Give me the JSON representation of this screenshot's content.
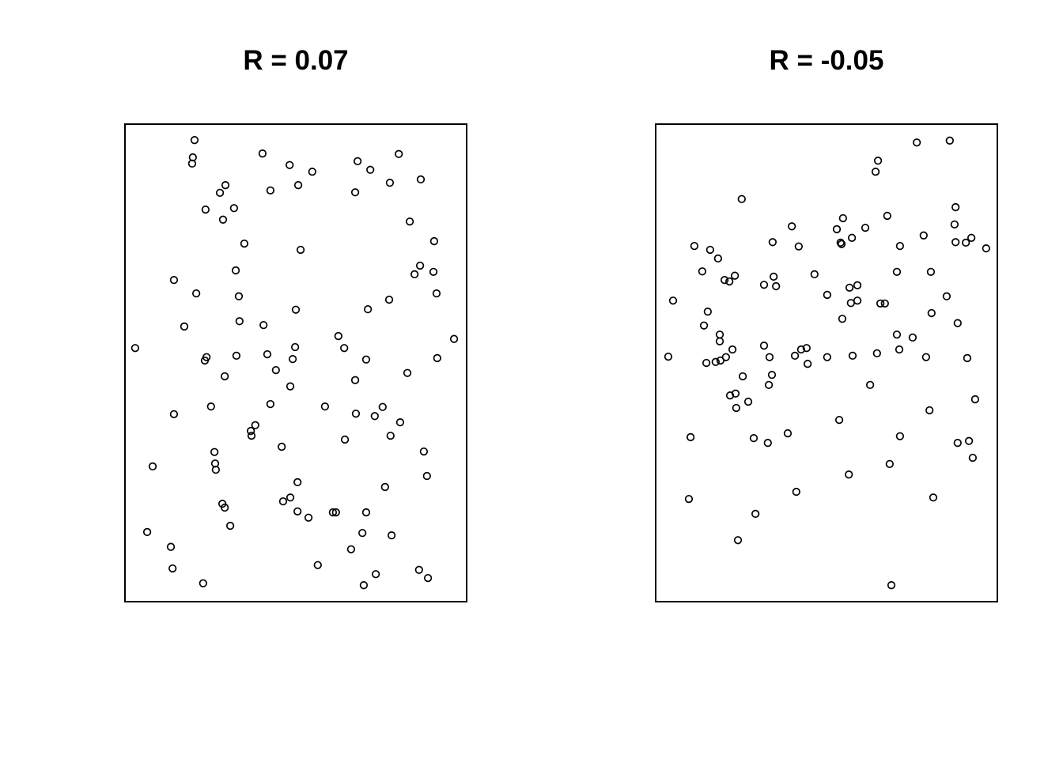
{
  "figure": {
    "background": "#ffffff",
    "box_color": "#000000",
    "point_color": "#000000"
  },
  "panels": [
    {
      "title": "R = 0.07"
    },
    {
      "title": "R = -0.05"
    }
  ],
  "chart_data": [
    {
      "type": "scatter",
      "title": "R = 0.07",
      "correlation_label": "R = 0.07",
      "correlation": 0.07,
      "marker": "open-circle",
      "axes_hidden": true,
      "grid": false,
      "legend": false,
      "xlim": [
        0,
        1
      ],
      "ylim": [
        0,
        1
      ],
      "x": [
        0.205,
        0.2,
        0.198,
        0.403,
        0.482,
        0.295,
        0.279,
        0.426,
        0.507,
        0.237,
        0.32,
        0.288,
        0.35,
        0.325,
        0.145,
        0.21,
        0.334,
        0.5,
        0.336,
        0.406,
        0.175,
        0.032,
        0.24,
        0.235,
        0.327,
        0.417,
        0.498,
        0.491,
        0.8,
        0.68,
        0.717,
        0.548,
        0.774,
        0.864,
        0.673,
        0.832,
        0.903,
        0.514,
        0.862,
        0.846,
        0.901,
        0.91,
        0.772,
        0.71,
        0.624,
        0.641,
        0.961,
        0.705,
        0.912,
        0.442,
        0.293,
        0.484,
        0.426,
        0.253,
        0.145,
        0.382,
        0.369,
        0.371,
        0.459,
        0.263,
        0.265,
        0.267,
        0.083,
        0.463,
        0.484,
        0.286,
        0.293,
        0.309,
        0.067,
        0.136,
        0.141,
        0.23,
        0.825,
        0.673,
        0.585,
        0.753,
        0.675,
        0.73,
        0.804,
        0.776,
        0.643,
        0.873,
        0.882,
        0.76,
        0.505,
        0.537,
        0.505,
        0.608,
        0.617,
        0.705,
        0.694,
        0.779,
        0.661,
        0.564,
        0.733,
        0.698,
        0.859,
        0.885
      ],
      "y": [
        0.965,
        0.929,
        0.916,
        0.937,
        0.913,
        0.871,
        0.855,
        0.86,
        0.871,
        0.82,
        0.823,
        0.799,
        0.749,
        0.693,
        0.673,
        0.645,
        0.639,
        0.611,
        0.587,
        0.579,
        0.576,
        0.531,
        0.512,
        0.505,
        0.515,
        0.518,
        0.533,
        0.508,
        0.936,
        0.921,
        0.903,
        0.899,
        0.876,
        0.883,
        0.856,
        0.795,
        0.754,
        0.736,
        0.703,
        0.685,
        0.69,
        0.645,
        0.632,
        0.612,
        0.556,
        0.531,
        0.55,
        0.507,
        0.51,
        0.485,
        0.472,
        0.451,
        0.414,
        0.409,
        0.393,
        0.37,
        0.358,
        0.348,
        0.325,
        0.314,
        0.29,
        0.277,
        0.284,
        0.211,
        0.219,
        0.206,
        0.198,
        0.16,
        0.147,
        0.116,
        0.071,
        0.04,
        0.479,
        0.464,
        0.409,
        0.408,
        0.394,
        0.389,
        0.376,
        0.348,
        0.34,
        0.315,
        0.264,
        0.241,
        0.251,
        0.177,
        0.19,
        0.188,
        0.188,
        0.188,
        0.145,
        0.14,
        0.111,
        0.078,
        0.059,
        0.036,
        0.068,
        0.051
      ]
    },
    {
      "type": "scatter",
      "title": "R = -0.05",
      "correlation_label": "R = -0.05",
      "correlation": -0.05,
      "marker": "open-circle",
      "axes_hidden": true,
      "grid": false,
      "legend": false,
      "xlim": [
        0,
        1
      ],
      "ylim": [
        0,
        1
      ],
      "x": [
        0.253,
        0.399,
        0.115,
        0.161,
        0.184,
        0.343,
        0.419,
        0.138,
        0.203,
        0.217,
        0.233,
        0.346,
        0.318,
        0.353,
        0.465,
        0.502,
        0.053,
        0.154,
        0.143,
        0.189,
        0.189,
        0.039,
        0.226,
        0.207,
        0.177,
        0.15,
        0.191,
        0.318,
        0.334,
        0.408,
        0.426,
        0.442,
        0.445,
        0.502,
        0.763,
        0.859,
        0.65,
        0.643,
        0.876,
        0.548,
        0.677,
        0.873,
        0.53,
        0.613,
        0.574,
        0.541,
        0.544,
        0.783,
        0.876,
        0.906,
        0.922,
        0.714,
        0.965,
        0.705,
        0.804,
        0.567,
        0.59,
        0.571,
        0.59,
        0.657,
        0.67,
        0.85,
        0.806,
        0.546,
        0.882,
        0.705,
        0.751,
        0.712,
        0.576,
        0.647,
        0.79,
        0.91,
        0.256,
        0.341,
        0.332,
        0.219,
        0.235,
        0.272,
        0.237,
        0.104,
        0.288,
        0.329,
        0.387,
        0.099,
        0.412,
        0.293,
        0.242,
        0.627,
        0.933,
        0.8,
        0.537,
        0.714,
        0.882,
        0.915,
        0.926,
        0.684,
        0.565,
        0.811,
        0.689
      ],
      "y": [
        0.842,
        0.785,
        0.744,
        0.736,
        0.718,
        0.752,
        0.743,
        0.691,
        0.673,
        0.67,
        0.682,
        0.68,
        0.663,
        0.66,
        0.685,
        0.642,
        0.63,
        0.607,
        0.578,
        0.559,
        0.545,
        0.513,
        0.528,
        0.512,
        0.502,
        0.5,
        0.505,
        0.536,
        0.512,
        0.515,
        0.528,
        0.531,
        0.498,
        0.512,
        0.96,
        0.964,
        0.922,
        0.899,
        0.825,
        0.802,
        0.807,
        0.789,
        0.779,
        0.782,
        0.761,
        0.751,
        0.748,
        0.766,
        0.752,
        0.751,
        0.761,
        0.744,
        0.739,
        0.69,
        0.69,
        0.657,
        0.662,
        0.625,
        0.63,
        0.624,
        0.624,
        0.639,
        0.604,
        0.592,
        0.583,
        0.559,
        0.553,
        0.528,
        0.515,
        0.52,
        0.512,
        0.51,
        0.472,
        0.475,
        0.454,
        0.432,
        0.436,
        0.419,
        0.406,
        0.345,
        0.343,
        0.333,
        0.353,
        0.216,
        0.231,
        0.185,
        0.13,
        0.454,
        0.424,
        0.401,
        0.381,
        0.347,
        0.333,
        0.337,
        0.302,
        0.289,
        0.267,
        0.219,
        0.036
      ]
    }
  ]
}
